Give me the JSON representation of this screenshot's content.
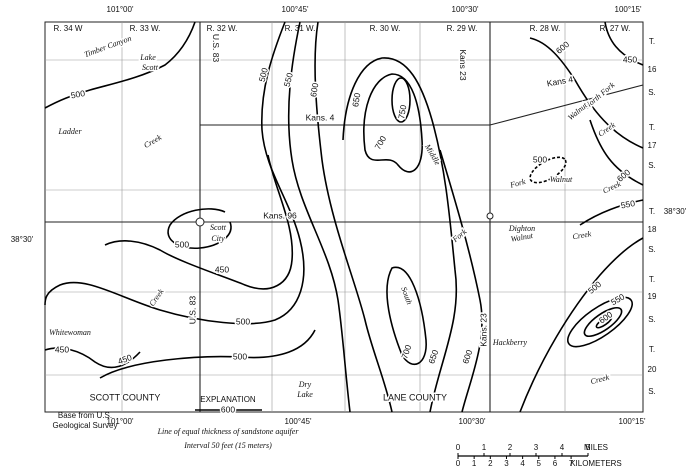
{
  "map": {
    "longitudes_top": [
      "101°00'",
      "100°45'",
      "100°30'",
      "100°15'"
    ],
    "longitudes_bottom": [
      "101°00'",
      "100°45'",
      "100°30'",
      "100°15'"
    ],
    "latitudes": [
      "38°30'",
      "38°30'"
    ],
    "ranges": [
      "R. 34 W",
      "R. 33 W.",
      "R. 32 W.",
      "R. 31 W.",
      "R. 30 W.",
      "R. 29 W.",
      "R. 28 W.",
      "R. 27 W."
    ],
    "townships": [
      {
        "t": "T.",
        "n": 16,
        "s": "S."
      },
      {
        "t": "T.",
        "n": 17,
        "s": "S."
      },
      {
        "t": "T.",
        "n": 18,
        "s": "S."
      },
      {
        "t": "T.",
        "n": 19,
        "s": "S."
      },
      {
        "t": "T.",
        "n": 20,
        "s": "S."
      }
    ],
    "roads": [
      "U.S. 83",
      "U.S. 83",
      "Kans. 4",
      "Kans 4",
      "Kans. 96",
      "Kans 23",
      "Kans. 23"
    ],
    "places": [
      "Timber Canyon",
      "Lake",
      "Scott",
      "Ladder",
      "Creek",
      "North Fork",
      "Walnut",
      "Creek",
      "Walnut",
      "Fork",
      "Creek",
      "Middle",
      "Dighton",
      "Fork",
      "Walnut",
      "Creek",
      "Scott",
      "City",
      "Creek",
      "Whitewoman",
      "South",
      "Hackberry",
      "Creek",
      "Dry",
      "Lake"
    ],
    "counties": [
      "SCOTT COUNTY",
      "LANE COUNTY"
    ],
    "contours": [
      500,
      450,
      600,
      500,
      550,
      600,
      650,
      750,
      700,
      500,
      600,
      550,
      500,
      450,
      500,
      500,
      450,
      450,
      700,
      650,
      600,
      500,
      550,
      600
    ]
  },
  "source": [
    "Base from U.S.",
    "Geological Survey"
  ],
  "explanation": {
    "heading": "EXPLANATION",
    "sample": 600,
    "description": "Line of equal thickness of sandstone aquifer",
    "interval": "Interval 50 feet (15 meters)"
  },
  "scale": {
    "miles": [
      0,
      1,
      2,
      3,
      4,
      5
    ],
    "miles_unit": "MILES",
    "kilometers": [
      0,
      1,
      2,
      3,
      4,
      5,
      6,
      7
    ],
    "kilometers_unit": "KILOMETERS"
  }
}
